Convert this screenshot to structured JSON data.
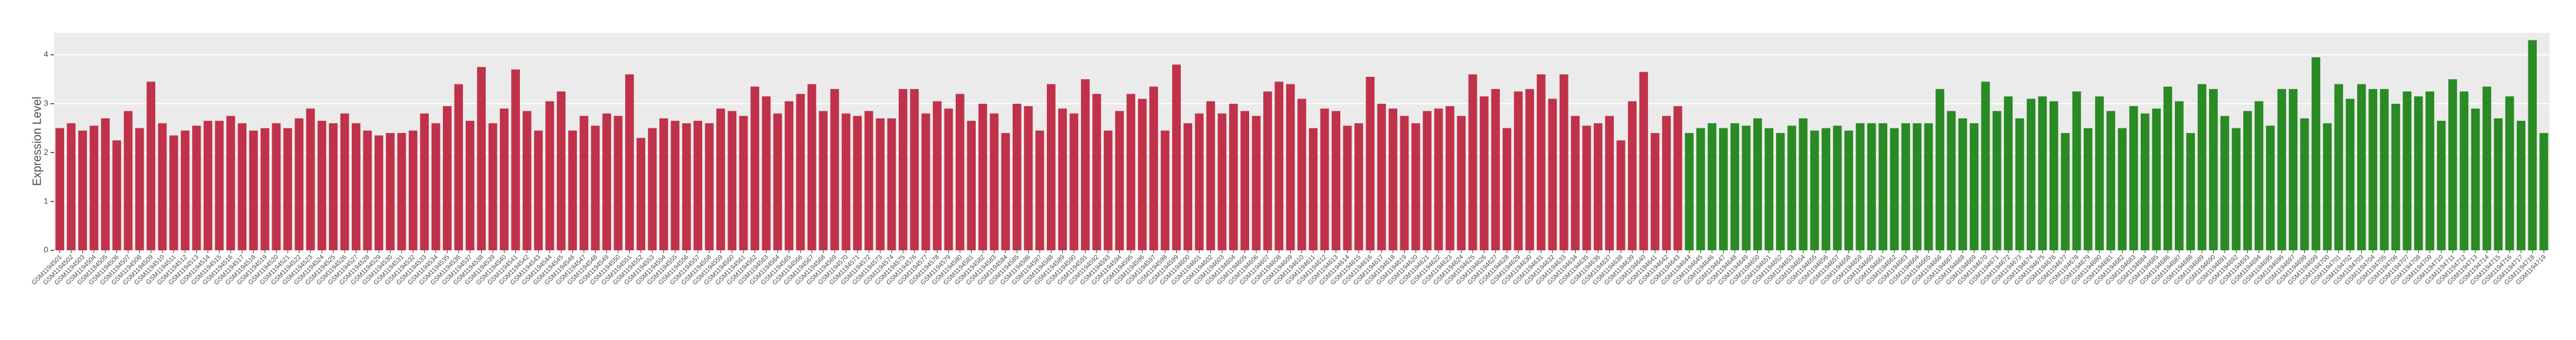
{
  "chart_data": {
    "type": "bar",
    "y_label": "Expression Level",
    "categories": [
      "GSM1194501",
      "GSM1194502",
      "GSM1194503",
      "GSM1194504",
      "GSM1194505",
      "GSM1194506",
      "GSM1194507",
      "GSM1194508",
      "GSM1194509",
      "GSM1194510",
      "GSM1194511",
      "GSM1194512",
      "GSM1194513",
      "GSM1194514",
      "GSM1194515",
      "GSM1194516",
      "GSM1194517",
      "GSM1194518",
      "GSM1194519",
      "GSM1194520",
      "GSM1194521",
      "GSM1194522",
      "GSM1194523",
      "GSM1194524",
      "GSM1194525",
      "GSM1194526",
      "GSM1194527",
      "GSM1194528",
      "GSM1194529",
      "GSM1194530",
      "GSM1194531",
      "GSM1194532",
      "GSM1194533",
      "GSM1194534",
      "GSM1194535",
      "GSM1194536",
      "GSM1194537",
      "GSM1194538",
      "GSM1194539",
      "GSM1194540",
      "GSM1194541",
      "GSM1194542",
      "GSM1194543",
      "GSM1194544",
      "GSM1194545",
      "GSM1194546",
      "GSM1194547",
      "GSM1194548",
      "GSM1194549",
      "GSM1194550",
      "GSM1194551",
      "GSM1194552",
      "GSM1194553",
      "GSM1194554",
      "GSM1194555",
      "GSM1194556",
      "GSM1194557",
      "GSM1194558",
      "GSM1194559",
      "GSM1194560",
      "GSM1194561",
      "GSM1194562",
      "GSM1194563",
      "GSM1194564",
      "GSM1194565",
      "GSM1194566",
      "GSM1194567",
      "GSM1194568",
      "GSM1194569",
      "GSM1194570",
      "GSM1194571",
      "GSM1194572",
      "GSM1194573",
      "GSM1194574",
      "GSM1194575",
      "GSM1194576",
      "GSM1194577",
      "GSM1194578",
      "GSM1194579",
      "GSM1194580",
      "GSM1194581",
      "GSM1194582",
      "GSM1194583",
      "GSM1194584",
      "GSM1194585",
      "GSM1194586",
      "GSM1194587",
      "GSM1194588",
      "GSM1194589",
      "GSM1194590",
      "GSM1194591",
      "GSM1194592",
      "GSM1194593",
      "GSM1194594",
      "GSM1194595",
      "GSM1194596",
      "GSM1194597",
      "GSM1194598",
      "GSM1194599",
      "GSM1194600",
      "GSM1194601",
      "GSM1194602",
      "GSM1194603",
      "GSM1194604",
      "GSM1194605",
      "GSM1194606",
      "GSM1194607",
      "GSM1194608",
      "GSM1194609",
      "GSM1194610",
      "GSM1194611",
      "GSM1194612",
      "GSM1194613",
      "GSM1194614",
      "GSM1194615",
      "GSM1194616",
      "GSM1194617",
      "GSM1194618",
      "GSM1194619",
      "GSM1194620",
      "GSM1194621",
      "GSM1194622",
      "GSM1194623",
      "GSM1194624",
      "GSM1194625",
      "GSM1194626",
      "GSM1194627",
      "GSM1194628",
      "GSM1194629",
      "GSM1194630",
      "GSM1194631",
      "GSM1194632",
      "GSM1194633",
      "GSM1194634",
      "GSM1194635",
      "GSM1194636",
      "GSM1194637",
      "GSM1194638",
      "GSM1194639",
      "GSM1194640",
      "GSM1194641",
      "GSM1194642",
      "GSM1194643",
      "GSM1194644",
      "GSM1194645",
      "GSM1194646",
      "GSM1194647",
      "GSM1194648",
      "GSM1194649",
      "GSM1194650",
      "GSM1194651",
      "GSM1194652",
      "GSM1194653",
      "GSM1194654",
      "GSM1194655",
      "GSM1194656",
      "GSM1194657",
      "GSM1194658",
      "GSM1194659",
      "GSM1194660",
      "GSM1194661",
      "GSM1194662",
      "GSM1194663",
      "GSM1194664",
      "GSM1194665",
      "GSM1194666",
      "GSM1194667",
      "GSM1194668",
      "GSM1194669",
      "GSM1194670",
      "GSM1194671",
      "GSM1194672",
      "GSM1194673",
      "GSM1194674",
      "GSM1194675",
      "GSM1194676",
      "GSM1194677",
      "GSM1194678",
      "GSM1194679",
      "GSM1194680",
      "GSM1194681",
      "GSM1194682",
      "GSM1194683",
      "GSM1194684",
      "GSM1194685",
      "GSM1194686",
      "GSM1194687",
      "GSM1194688",
      "GSM1194689",
      "GSM1194690",
      "GSM1194691",
      "GSM1194692",
      "GSM1194693",
      "GSM1194694",
      "GSM1194695",
      "GSM1194696",
      "GSM1194697",
      "GSM1194698",
      "GSM1194699",
      "GSM1194700",
      "GSM1194701",
      "GSM1194702",
      "GSM1194703",
      "GSM1194704",
      "GSM1194705",
      "GSM1194706",
      "GSM1194707",
      "GSM1194708",
      "GSM1194709",
      "GSM1194710",
      "GSM1194711",
      "GSM1194712",
      "GSM1194713",
      "GSM1194714",
      "GSM1194715",
      "GSM1194716",
      "GSM1194717",
      "GSM1194718",
      "GSM1194719"
    ],
    "series": [
      {
        "color": "#c0324a",
        "values": [
          2.5,
          2.6,
          2.45,
          2.55,
          2.7,
          2.25,
          2.85,
          2.5,
          3.45,
          2.6,
          2.35,
          2.45,
          2.55,
          2.65,
          2.65,
          2.75,
          2.6,
          2.45,
          2.5,
          2.6,
          2.5,
          2.7,
          2.9,
          2.65,
          2.6,
          2.8,
          2.6,
          2.45,
          2.35,
          2.4,
          2.4,
          2.45,
          2.8,
          2.6,
          2.95,
          3.4,
          2.65,
          3.75,
          2.6,
          2.9,
          3.7,
          2.85,
          2.45,
          3.05,
          3.25,
          2.45,
          2.75,
          2.55,
          2.8,
          2.75,
          3.6,
          2.3,
          2.5,
          2.7,
          2.65,
          2.6,
          2.65,
          2.6,
          2.9,
          2.85,
          2.75,
          3.35,
          3.15,
          2.8,
          3.05,
          3.2,
          3.4,
          2.85,
          3.3,
          2.8,
          2.75,
          2.85,
          2.7,
          2.7,
          3.3,
          3.3,
          2.8,
          3.05,
          2.9,
          3.2,
          2.65,
          3.0,
          2.8,
          2.4,
          3.0,
          2.95,
          2.45,
          3.4,
          2.9,
          2.8,
          3.5,
          3.2,
          2.45,
          2.85,
          3.2,
          3.1,
          3.35,
          2.45,
          3.8,
          2.6,
          2.8,
          3.05,
          2.8,
          3.0,
          2.85,
          2.75,
          3.25,
          3.45,
          3.4,
          3.1,
          2.5,
          2.9,
          2.85,
          2.55,
          2.6,
          3.55,
          3.0,
          2.9,
          2.75,
          2.6,
          2.85,
          2.9,
          2.95,
          2.75,
          3.6,
          3.15,
          3.3,
          2.5,
          3.25,
          3.3,
          3.6,
          3.1,
          3.6,
          2.75,
          2.55,
          2.6,
          2.75,
          2.25,
          3.05,
          3.65,
          2.4,
          2.75,
          2.95,
          null,
          null,
          null,
          null,
          null,
          null,
          null,
          null,
          null,
          null,
          null,
          null,
          null,
          null,
          null,
          null,
          null,
          null,
          null,
          null,
          null,
          null,
          null,
          null,
          null,
          null,
          null,
          null,
          null,
          null,
          null,
          null,
          null,
          null,
          null,
          null,
          null,
          null,
          null,
          null,
          null,
          null,
          null,
          null,
          null,
          null,
          null,
          null,
          null,
          null,
          null,
          null,
          null,
          null,
          null,
          null,
          null,
          null,
          null,
          null,
          null,
          null,
          null,
          null,
          null,
          null,
          null,
          null,
          null,
          null,
          null,
          null,
          null,
          null,
          null,
          null
        ]
      },
      {
        "color": "#2a8a24",
        "values": [
          null,
          null,
          null,
          null,
          null,
          null,
          null,
          null,
          null,
          null,
          null,
          null,
          null,
          null,
          null,
          null,
          null,
          null,
          null,
          null,
          null,
          null,
          null,
          null,
          null,
          null,
          null,
          null,
          null,
          null,
          null,
          null,
          null,
          null,
          null,
          null,
          null,
          null,
          null,
          null,
          null,
          null,
          null,
          null,
          null,
          null,
          null,
          null,
          null,
          null,
          null,
          null,
          null,
          null,
          null,
          null,
          null,
          null,
          null,
          null,
          null,
          null,
          null,
          null,
          null,
          null,
          null,
          null,
          null,
          null,
          null,
          null,
          null,
          null,
          null,
          null,
          null,
          null,
          null,
          null,
          null,
          null,
          null,
          null,
          null,
          null,
          null,
          null,
          null,
          null,
          null,
          null,
          null,
          null,
          null,
          null,
          null,
          null,
          null,
          null,
          null,
          null,
          null,
          null,
          null,
          null,
          null,
          null,
          null,
          null,
          null,
          null,
          null,
          null,
          null,
          null,
          null,
          null,
          null,
          null,
          null,
          null,
          null,
          null,
          null,
          null,
          null,
          null,
          null,
          null,
          null,
          null,
          null,
          null,
          null,
          null,
          null,
          null,
          null,
          null,
          null,
          null,
          null,
          2.4,
          2.5,
          2.6,
          2.5,
          2.6,
          2.55,
          2.7,
          2.5,
          2.4,
          2.55,
          2.7,
          2.45,
          2.5,
          2.55,
          2.45,
          2.6,
          2.6,
          2.6,
          2.5,
          2.6,
          2.6,
          2.6,
          3.3,
          2.85,
          2.7,
          2.6,
          3.45,
          2.85,
          3.15,
          2.7,
          3.1,
          3.15,
          3.05,
          2.4,
          3.25,
          2.5,
          3.15,
          2.85,
          2.5,
          2.95,
          2.8,
          2.9,
          3.35,
          3.05,
          2.4,
          3.4,
          3.3,
          2.75,
          2.5,
          2.85,
          3.05,
          2.55,
          3.3,
          3.3,
          2.7,
          3.95,
          2.6,
          3.4,
          3.1,
          3.4,
          3.3,
          3.3,
          3.0,
          3.25,
          3.15,
          3.25,
          2.65,
          3.5,
          3.25,
          2.9,
          3.35,
          2.7,
          3.15,
          2.65,
          4.3,
          2.4
        ]
      }
    ],
    "ylim": [
      0,
      4.45
    ],
    "yticks": [
      0,
      1,
      2,
      3,
      4
    ],
    "grid": true,
    "panel_color": "#ebebeb"
  }
}
